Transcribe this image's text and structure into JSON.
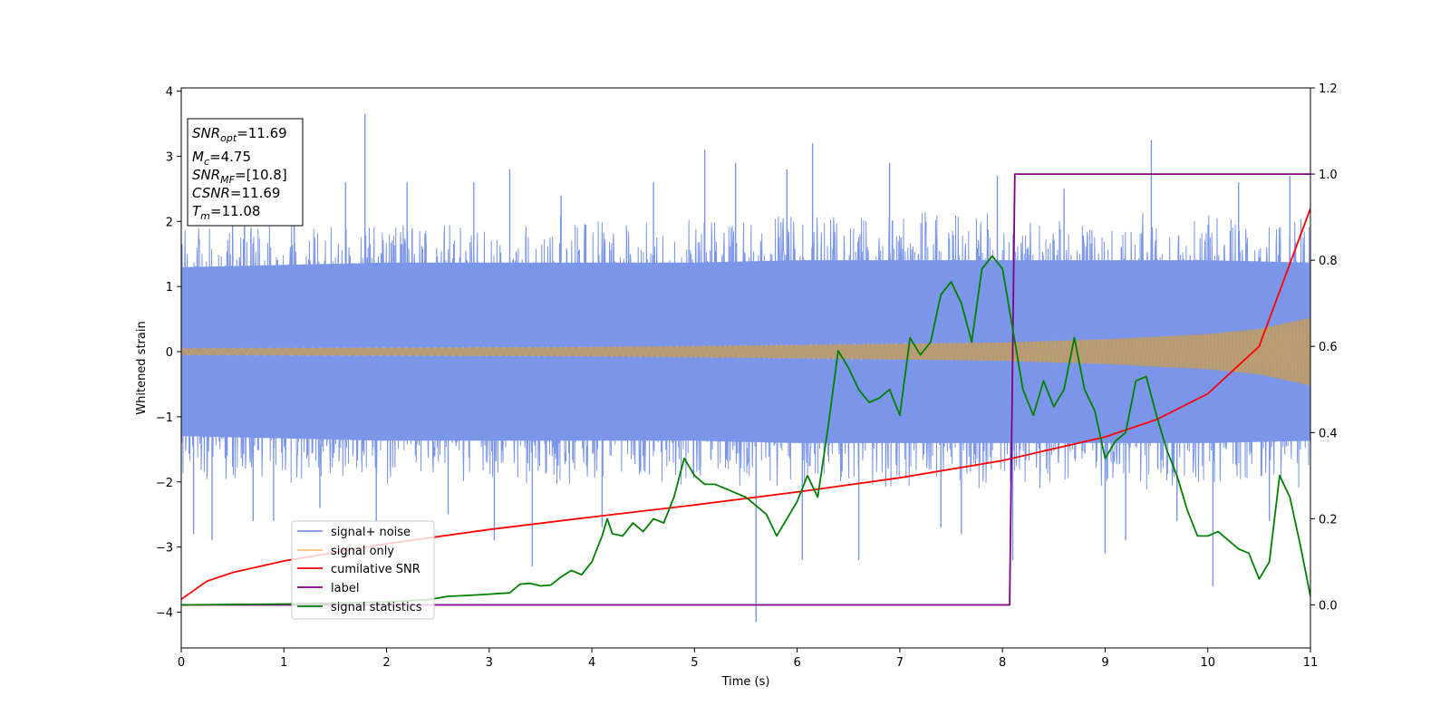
{
  "chart_data": {
    "type": "line",
    "xlabel": "Time (s)",
    "ylabel": "Whitened strain",
    "xlim": [
      0,
      11
    ],
    "ylim": [
      -4.55,
      4.05
    ],
    "y2lim": [
      -0.1,
      1.2
    ],
    "x_ticks": [
      "0",
      "1",
      "2",
      "3",
      "4",
      "5",
      "6",
      "7",
      "8",
      "9",
      "10",
      "11"
    ],
    "y_ticks": [
      "−4",
      "−3",
      "−2",
      "−1",
      "0",
      "1",
      "2",
      "3",
      "4"
    ],
    "y_tick_values": [
      -4,
      -3,
      -2,
      -1,
      0,
      1,
      2,
      3,
      4
    ],
    "y2_ticks": [
      "0.0",
      "0.2",
      "0.4",
      "0.6",
      "0.8",
      "1.0",
      "1.2"
    ],
    "y2_tick_values": [
      0.0,
      0.2,
      0.4,
      0.6,
      0.8,
      1.0,
      1.2
    ],
    "grid": false,
    "legend_position": "lower-left",
    "info_box": {
      "snr_opt": {
        "var": "SNR",
        "sub": "opt",
        "value": "=11.69"
      },
      "mc": {
        "var": "M",
        "sub": "c",
        "value": "=4.75"
      },
      "snr_mf": {
        "var": "SNR",
        "sub": "MF",
        "value": "=[10.8]"
      },
      "csnr": {
        "var": "CSNR",
        "value": "=11.69"
      },
      "tm": {
        "var": "T",
        "sub": "m",
        "value": "=11.08"
      }
    },
    "series": [
      {
        "name": "signal+ noise",
        "color": "#7b96e8",
        "axis": "left",
        "description": "noisy strain envelope",
        "envelope_upper": [
          [
            0,
            1.8
          ],
          [
            1,
            1.85
          ],
          [
            2,
            1.9
          ],
          [
            3,
            1.9
          ],
          [
            4,
            1.9
          ],
          [
            5,
            1.9
          ],
          [
            6,
            1.95
          ],
          [
            7,
            1.95
          ],
          [
            8,
            1.95
          ],
          [
            9,
            1.95
          ],
          [
            10,
            1.95
          ],
          [
            11,
            1.9
          ]
        ],
        "envelope_lower": [
          [
            0,
            -1.8
          ],
          [
            1,
            -1.85
          ],
          [
            2,
            -1.9
          ],
          [
            3,
            -1.9
          ],
          [
            4,
            -1.9
          ],
          [
            5,
            -1.9
          ],
          [
            6,
            -1.95
          ],
          [
            7,
            -1.95
          ],
          [
            8,
            -1.95
          ],
          [
            9,
            -1.95
          ],
          [
            10,
            -1.95
          ],
          [
            11,
            -1.9
          ]
        ],
        "spikes": [
          [
            0.12,
            -2.8
          ],
          [
            0.3,
            -2.9
          ],
          [
            0.5,
            2.6
          ],
          [
            0.7,
            -2.6
          ],
          [
            0.9,
            -2.6
          ],
          [
            1.1,
            2.7
          ],
          [
            1.35,
            -2.4
          ],
          [
            1.6,
            2.6
          ],
          [
            1.79,
            3.65
          ],
          [
            1.9,
            -2.6
          ],
          [
            2.2,
            2.6
          ],
          [
            2.6,
            -2.5
          ],
          [
            2.85,
            2.6
          ],
          [
            3.05,
            -2.9
          ],
          [
            3.2,
            2.8
          ],
          [
            3.42,
            -3.3
          ],
          [
            3.7,
            2.4
          ],
          [
            4.1,
            -2.7
          ],
          [
            4.6,
            2.6
          ],
          [
            5.1,
            3.1
          ],
          [
            5.4,
            2.9
          ],
          [
            5.6,
            -4.15
          ],
          [
            5.9,
            2.8
          ],
          [
            6.05,
            -3.2
          ],
          [
            6.15,
            3.2
          ],
          [
            6.6,
            -3.2
          ],
          [
            6.9,
            2.9
          ],
          [
            7.4,
            -2.7
          ],
          [
            7.6,
            -2.8
          ],
          [
            7.95,
            2.7
          ],
          [
            8.1,
            -3.2
          ],
          [
            8.6,
            2.5
          ],
          [
            9.0,
            -3.1
          ],
          [
            9.2,
            -2.9
          ],
          [
            9.45,
            3.25
          ],
          [
            9.7,
            -2.6
          ],
          [
            10.05,
            -3.6
          ],
          [
            10.3,
            2.6
          ],
          [
            10.6,
            -2.6
          ],
          [
            10.8,
            2.7
          ]
        ]
      },
      {
        "name": "signal only",
        "color": "#f9c373",
        "axis": "left",
        "description": "chirp amplitude envelope",
        "amplitude": [
          [
            0,
            0.05
          ],
          [
            2,
            0.06
          ],
          [
            4,
            0.07
          ],
          [
            6,
            0.1
          ],
          [
            7,
            0.12
          ],
          [
            8,
            0.14
          ],
          [
            9,
            0.19
          ],
          [
            10,
            0.27
          ],
          [
            10.5,
            0.35
          ],
          [
            11,
            0.52
          ]
        ]
      },
      {
        "name": "cumilative SNR",
        "color": "#ff0000",
        "axis": "right",
        "points": [
          [
            0,
            0.013
          ],
          [
            0.25,
            0.055
          ],
          [
            0.5,
            0.075
          ],
          [
            1,
            0.102
          ],
          [
            2,
            0.142
          ],
          [
            3,
            0.175
          ],
          [
            4,
            0.204
          ],
          [
            5,
            0.232
          ],
          [
            6,
            0.262
          ],
          [
            7,
            0.295
          ],
          [
            8,
            0.335
          ],
          [
            9,
            0.39
          ],
          [
            9.5,
            0.43
          ],
          [
            10,
            0.49
          ],
          [
            10.5,
            0.6
          ],
          [
            11,
            0.92
          ]
        ]
      },
      {
        "name": "label",
        "color": "#800080",
        "axis": "right",
        "points": [
          [
            0,
            0.0
          ],
          [
            8.07,
            0.0
          ],
          [
            8.12,
            1.0
          ],
          [
            11,
            1.0
          ]
        ]
      },
      {
        "name": "signal statistics",
        "color": "#008000",
        "axis": "right",
        "points": [
          [
            0,
            0.0
          ],
          [
            1,
            0.002
          ],
          [
            1.5,
            0.004
          ],
          [
            2,
            0.007
          ],
          [
            2.4,
            0.012
          ],
          [
            2.6,
            0.02
          ],
          [
            2.8,
            0.022
          ],
          [
            3,
            0.025
          ],
          [
            3.2,
            0.028
          ],
          [
            3.3,
            0.048
          ],
          [
            3.4,
            0.05
          ],
          [
            3.5,
            0.044
          ],
          [
            3.6,
            0.046
          ],
          [
            3.7,
            0.065
          ],
          [
            3.8,
            0.08
          ],
          [
            3.9,
            0.07
          ],
          [
            4.0,
            0.1
          ],
          [
            4.1,
            0.16
          ],
          [
            4.15,
            0.2
          ],
          [
            4.2,
            0.165
          ],
          [
            4.3,
            0.16
          ],
          [
            4.4,
            0.19
          ],
          [
            4.5,
            0.17
          ],
          [
            4.6,
            0.2
          ],
          [
            4.7,
            0.19
          ],
          [
            4.8,
            0.25
          ],
          [
            4.9,
            0.34
          ],
          [
            5.0,
            0.3
          ],
          [
            5.1,
            0.28
          ],
          [
            5.2,
            0.28
          ],
          [
            5.3,
            0.27
          ],
          [
            5.4,
            0.26
          ],
          [
            5.5,
            0.25
          ],
          [
            5.6,
            0.23
          ],
          [
            5.7,
            0.21
          ],
          [
            5.8,
            0.16
          ],
          [
            5.9,
            0.2
          ],
          [
            6.0,
            0.24
          ],
          [
            6.1,
            0.3
          ],
          [
            6.2,
            0.25
          ],
          [
            6.3,
            0.41
          ],
          [
            6.4,
            0.59
          ],
          [
            6.5,
            0.55
          ],
          [
            6.6,
            0.5
          ],
          [
            6.7,
            0.47
          ],
          [
            6.8,
            0.48
          ],
          [
            6.9,
            0.5
          ],
          [
            7.0,
            0.44
          ],
          [
            7.1,
            0.62
          ],
          [
            7.2,
            0.58
          ],
          [
            7.3,
            0.61
          ],
          [
            7.4,
            0.72
          ],
          [
            7.5,
            0.75
          ],
          [
            7.6,
            0.7
          ],
          [
            7.7,
            0.61
          ],
          [
            7.8,
            0.78
          ],
          [
            7.9,
            0.81
          ],
          [
            8.0,
            0.78
          ],
          [
            8.1,
            0.64
          ],
          [
            8.2,
            0.5
          ],
          [
            8.3,
            0.44
          ],
          [
            8.4,
            0.52
          ],
          [
            8.5,
            0.46
          ],
          [
            8.6,
            0.5
          ],
          [
            8.7,
            0.62
          ],
          [
            8.8,
            0.5
          ],
          [
            8.9,
            0.45
          ],
          [
            9.0,
            0.34
          ],
          [
            9.1,
            0.38
          ],
          [
            9.2,
            0.4
          ],
          [
            9.3,
            0.52
          ],
          [
            9.4,
            0.53
          ],
          [
            9.5,
            0.44
          ],
          [
            9.6,
            0.36
          ],
          [
            9.7,
            0.3
          ],
          [
            9.8,
            0.22
          ],
          [
            9.9,
            0.16
          ],
          [
            10.0,
            0.16
          ],
          [
            10.1,
            0.17
          ],
          [
            10.2,
            0.15
          ],
          [
            10.3,
            0.13
          ],
          [
            10.4,
            0.12
          ],
          [
            10.5,
            0.06
          ],
          [
            10.6,
            0.1
          ],
          [
            10.7,
            0.3
          ],
          [
            10.8,
            0.25
          ],
          [
            10.9,
            0.14
          ],
          [
            11,
            0.02
          ]
        ]
      }
    ]
  }
}
